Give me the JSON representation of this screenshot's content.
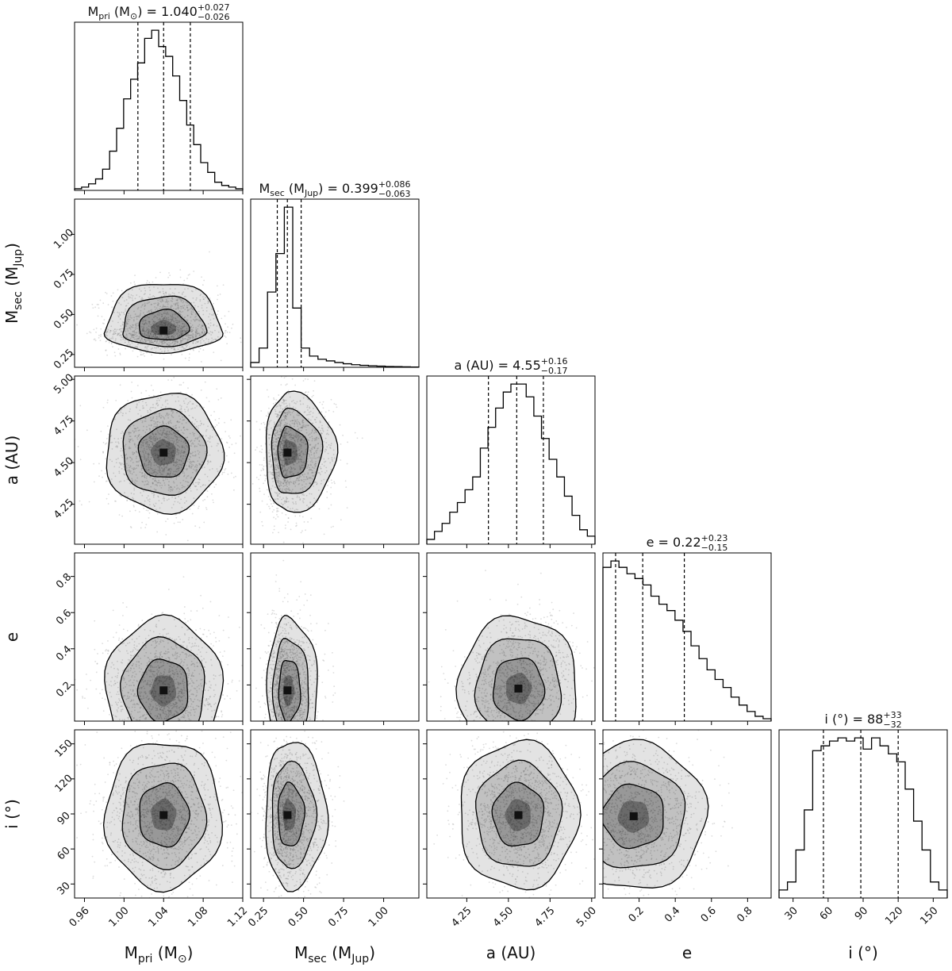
{
  "chart_data": {
    "type": "corner",
    "parameters": [
      {
        "key": "mpri",
        "axis_label": {
          "base": "M",
          "sub": "pri",
          "unit": " (M",
          "unit_sub": "⊙",
          "unit_close": ")"
        },
        "title": {
          "prefix": "M",
          "sub": "pri",
          "unit": " (M",
          "unit_sub": "⊙",
          "unit_close": ") = ",
          "value": "1.040",
          "plus": "+0.027",
          "minus": "−0.026"
        },
        "range": [
          0.95,
          1.12
        ],
        "ticks": [
          0.96,
          1.0,
          1.04,
          1.08,
          1.12
        ],
        "tick_labels": [
          "0.96",
          "1.00",
          "1.04",
          "1.08",
          "1.12"
        ],
        "quantiles": [
          1.014,
          1.04,
          1.067
        ],
        "hist": [
          1,
          2,
          4,
          7,
          13,
          24,
          38,
          56,
          68,
          78,
          93,
          98,
          88,
          82,
          70,
          55,
          40,
          28,
          17,
          11,
          5,
          3,
          2,
          1
        ]
      },
      {
        "key": "msec",
        "axis_label": {
          "base": "M",
          "sub": "sec",
          "unit": " (M",
          "unit_sub": "Jup",
          "unit_close": ")"
        },
        "title": {
          "prefix": "M",
          "sub": "sec",
          "unit": " (M",
          "unit_sub": "Jup",
          "unit_close": ") = ",
          "value": "0.399",
          "plus": "+0.086",
          "minus": "−0.063"
        },
        "range": [
          0.17,
          1.22
        ],
        "ticks": [
          0.25,
          0.5,
          0.75,
          1.0
        ],
        "tick_labels": [
          "0.25",
          "0.50",
          "0.75",
          "1.00"
        ],
        "quantiles": [
          0.336,
          0.399,
          0.485
        ],
        "hist": [
          3,
          12,
          47,
          71,
          100,
          37,
          12,
          7,
          5,
          4,
          3,
          2.2,
          1.6,
          1.2,
          0.9,
          0.7,
          0.5,
          0.4,
          0.3,
          0.2
        ]
      },
      {
        "key": "a",
        "axis_label": {
          "base": "a (AU)",
          "sub": "",
          "unit": "",
          "unit_sub": "",
          "unit_close": ""
        },
        "title": {
          "prefix": "a (AU) = ",
          "sub": "",
          "unit": "",
          "unit_sub": "",
          "unit_close": "",
          "value": "4.55",
          "plus": "+0.16",
          "minus": "−0.17"
        },
        "range": [
          4.01,
          5.02
        ],
        "ticks": [
          4.25,
          4.5,
          4.75,
          5.0
        ],
        "tick_labels": [
          "4.25",
          "4.50",
          "4.75",
          "5.00"
        ],
        "quantiles": [
          4.38,
          4.55,
          4.71
        ],
        "hist": [
          3,
          8,
          13,
          20,
          26,
          34,
          42,
          60,
          73,
          85,
          95,
          100,
          100,
          92,
          80,
          66,
          53,
          42,
          30,
          18,
          9,
          5
        ]
      },
      {
        "key": "e",
        "axis_label": {
          "base": "e",
          "sub": "",
          "unit": "",
          "unit_sub": "",
          "unit_close": ""
        },
        "title": {
          "prefix": "e = ",
          "sub": "",
          "unit": "",
          "unit_sub": "",
          "unit_close": "",
          "value": "0.22",
          "plus": "+0.23",
          "minus": "−0.15"
        },
        "range": [
          0.0,
          0.93
        ],
        "ticks": [
          0.2,
          0.4,
          0.6,
          0.8
        ],
        "tick_labels": [
          "0.2",
          "0.4",
          "0.6",
          "0.8"
        ],
        "quantiles": [
          0.07,
          0.22,
          0.45
        ],
        "hist": [
          96,
          100,
          96,
          92,
          89,
          85,
          78,
          73,
          69,
          63,
          56,
          47,
          39,
          32,
          26,
          21,
          15,
          10,
          6,
          3,
          1.5
        ]
      },
      {
        "key": "i",
        "axis_label": {
          "base": "i (°)",
          "sub": "",
          "unit": "",
          "unit_sub": "",
          "unit_close": ""
        },
        "title": {
          "prefix": "i (°) = ",
          "sub": "",
          "unit": "",
          "unit_sub": "",
          "unit_close": "",
          "value": "88",
          "plus": "+33",
          "minus": "−32"
        },
        "range": [
          18,
          162
        ],
        "ticks": [
          30,
          60,
          90,
          120,
          150
        ],
        "tick_labels": [
          "30",
          "60",
          "90",
          "120",
          "150"
        ],
        "quantiles": [
          56,
          88,
          120
        ],
        "hist": [
          5,
          10,
          30,
          55,
          92,
          95,
          98,
          100,
          98,
          100,
          93,
          100,
          95,
          90,
          85,
          68,
          48,
          30,
          10,
          5
        ]
      }
    ],
    "pairs": [
      {
        "row": 1,
        "col": 0,
        "center": [
          1.04,
          0.4
        ],
        "sigma": [
          0.028,
          0.065
        ],
        "corr": 0.0,
        "skew_y": 2.2
      },
      {
        "row": 2,
        "col": 0,
        "center": [
          1.04,
          4.56
        ],
        "sigma": [
          0.028,
          0.17
        ],
        "corr": 0.0,
        "skew_y": 0
      },
      {
        "row": 2,
        "col": 1,
        "center": [
          0.4,
          4.56
        ],
        "sigma": [
          0.065,
          0.17
        ],
        "corr": 0.05,
        "skew_x": 2.2
      },
      {
        "row": 3,
        "col": 0,
        "center": [
          1.04,
          0.17
        ],
        "sigma": [
          0.028,
          0.19
        ],
        "corr": 0.0,
        "skew_y": 1.0
      },
      {
        "row": 3,
        "col": 1,
        "center": [
          0.4,
          0.17
        ],
        "sigma": [
          0.06,
          0.19
        ],
        "corr": 0.0,
        "skew_x": 1.5,
        "skew_y": 1.0
      },
      {
        "row": 3,
        "col": 2,
        "center": [
          4.56,
          0.18
        ],
        "sigma": [
          0.17,
          0.19
        ],
        "corr": 0.25,
        "skew_y": 1.0
      },
      {
        "row": 4,
        "col": 0,
        "center": [
          1.04,
          89
        ],
        "sigma": [
          0.028,
          30
        ],
        "corr": 0.0
      },
      {
        "row": 4,
        "col": 1,
        "center": [
          0.4,
          89
        ],
        "sigma": [
          0.065,
          30
        ],
        "corr": 0.0,
        "skew_x": 1.8
      },
      {
        "row": 4,
        "col": 2,
        "center": [
          4.56,
          89
        ],
        "sigma": [
          0.17,
          30
        ],
        "corr": 0.0
      },
      {
        "row": 4,
        "col": 3,
        "center": [
          0.17,
          88
        ],
        "sigma": [
          0.19,
          30
        ],
        "corr": 0.0,
        "skew_x": 1.0
      }
    ],
    "quantile_levels": [
      0.16,
      0.5,
      0.84
    ]
  }
}
